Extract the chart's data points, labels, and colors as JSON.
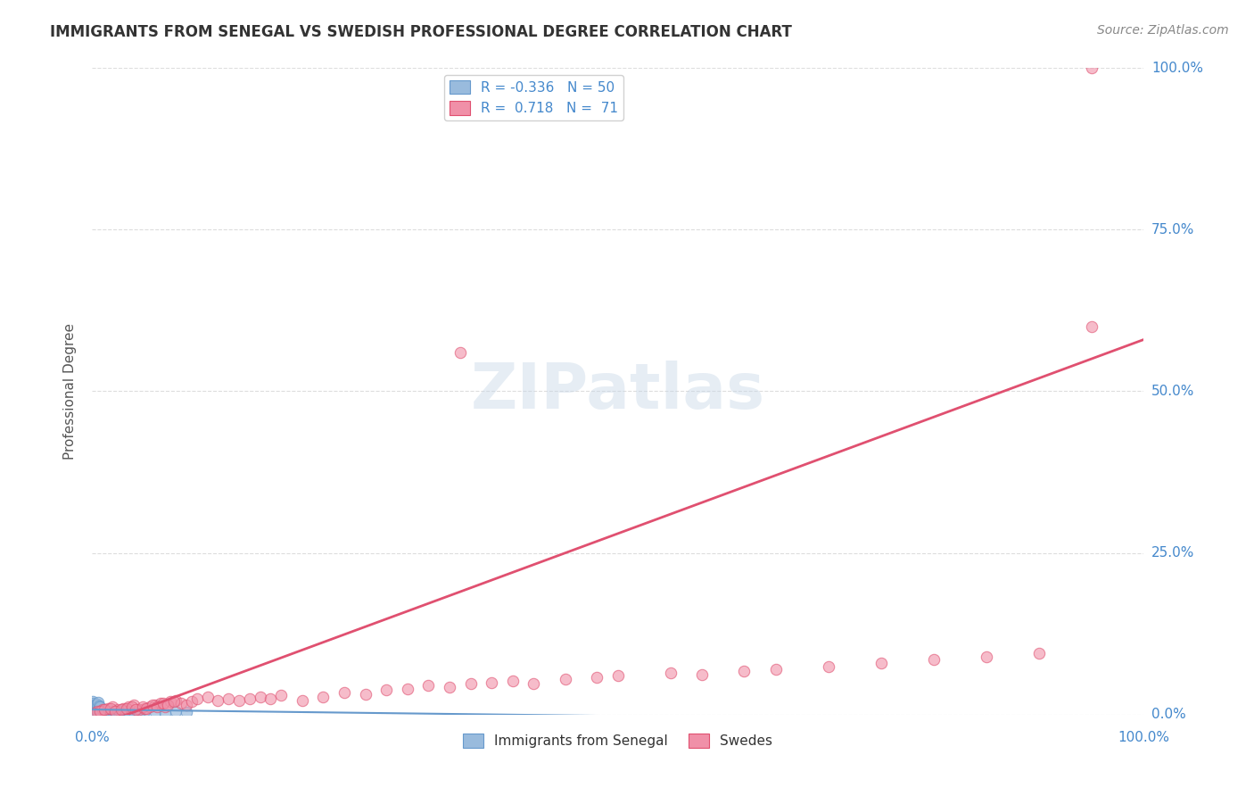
{
  "title": "IMMIGRANTS FROM SENEGAL VS SWEDISH PROFESSIONAL DEGREE CORRELATION CHART",
  "source": "Source: ZipAtlas.com",
  "ylabel": "Professional Degree",
  "ytick_labels": [
    "0.0%",
    "25.0%",
    "50.0%",
    "75.0%",
    "100.0%"
  ],
  "ytick_values": [
    0.0,
    0.25,
    0.5,
    0.75,
    1.0
  ],
  "xlim": [
    0.0,
    1.0
  ],
  "ylim": [
    0.0,
    1.0
  ],
  "legend_entry1_R": "-0.336",
  "legend_entry1_N": "50",
  "legend_entry2_R": "0.718",
  "legend_entry2_N": "71",
  "color_blue_line": "#6699cc",
  "color_pink_line": "#e05070",
  "color_blue_scatter": "#99bbdd",
  "color_pink_scatter": "#f090a8",
  "color_axis_labels": "#4488cc",
  "color_title": "#333333",
  "color_source": "#888888",
  "color_grid": "#dddddd",
  "senegal_x": [
    0.002,
    0.003,
    0.004,
    0.005,
    0.006,
    0.007,
    0.008,
    0.009,
    0.01,
    0.011,
    0.012,
    0.013,
    0.014,
    0.015,
    0.016,
    0.017,
    0.018,
    0.019,
    0.02,
    0.021,
    0.022,
    0.023,
    0.024,
    0.025,
    0.026,
    0.027,
    0.028,
    0.029,
    0.03,
    0.031,
    0.032,
    0.033,
    0.034,
    0.035,
    0.036,
    0.05,
    0.06,
    0.07,
    0.08,
    0.09,
    0.001,
    0.002,
    0.003,
    0.004,
    0.005,
    0.006,
    0.007,
    0.008,
    0.04,
    0.045
  ],
  "senegal_y": [
    0.005,
    0.003,
    0.004,
    0.006,
    0.003,
    0.005,
    0.004,
    0.006,
    0.003,
    0.004,
    0.005,
    0.003,
    0.004,
    0.006,
    0.003,
    0.005,
    0.004,
    0.003,
    0.006,
    0.004,
    0.005,
    0.003,
    0.004,
    0.006,
    0.003,
    0.005,
    0.004,
    0.003,
    0.006,
    0.004,
    0.005,
    0.003,
    0.004,
    0.006,
    0.003,
    0.005,
    0.004,
    0.003,
    0.006,
    0.004,
    0.02,
    0.018,
    0.015,
    0.016,
    0.017,
    0.019,
    0.013,
    0.012,
    0.004,
    0.003
  ],
  "swedes_x": [
    0.005,
    0.01,
    0.015,
    0.02,
    0.025,
    0.03,
    0.035,
    0.04,
    0.045,
    0.05,
    0.055,
    0.06,
    0.065,
    0.07,
    0.075,
    0.08,
    0.085,
    0.09,
    0.095,
    0.1,
    0.11,
    0.12,
    0.13,
    0.14,
    0.15,
    0.16,
    0.17,
    0.18,
    0.2,
    0.22,
    0.24,
    0.26,
    0.28,
    0.3,
    0.32,
    0.34,
    0.36,
    0.38,
    0.4,
    0.42,
    0.45,
    0.48,
    0.5,
    0.35,
    0.55,
    0.58,
    0.62,
    0.65,
    0.7,
    0.75,
    0.8,
    0.85,
    0.9,
    0.95,
    0.003,
    0.008,
    0.012,
    0.018,
    0.022,
    0.028,
    0.033,
    0.038,
    0.042,
    0.048,
    0.052,
    0.058,
    0.062,
    0.068,
    0.072,
    0.078,
    0.95
  ],
  "swedes_y": [
    0.005,
    0.008,
    0.01,
    0.012,
    0.008,
    0.01,
    0.012,
    0.015,
    0.008,
    0.01,
    0.012,
    0.015,
    0.018,
    0.012,
    0.02,
    0.022,
    0.018,
    0.015,
    0.02,
    0.025,
    0.028,
    0.022,
    0.025,
    0.022,
    0.025,
    0.028,
    0.025,
    0.03,
    0.022,
    0.028,
    0.035,
    0.032,
    0.038,
    0.04,
    0.045,
    0.042,
    0.048,
    0.05,
    0.052,
    0.048,
    0.055,
    0.058,
    0.06,
    0.56,
    0.065,
    0.062,
    0.068,
    0.07,
    0.075,
    0.08,
    0.085,
    0.09,
    0.095,
    0.6,
    0.003,
    0.005,
    0.008,
    0.01,
    0.005,
    0.008,
    0.01,
    0.012,
    0.008,
    0.012,
    0.01,
    0.015,
    0.012,
    0.018,
    0.015,
    0.02,
    1.0
  ],
  "slope_blue": -0.02,
  "intercept_blue": 0.008,
  "slope_pink": 0.6,
  "intercept_pink": -0.02
}
